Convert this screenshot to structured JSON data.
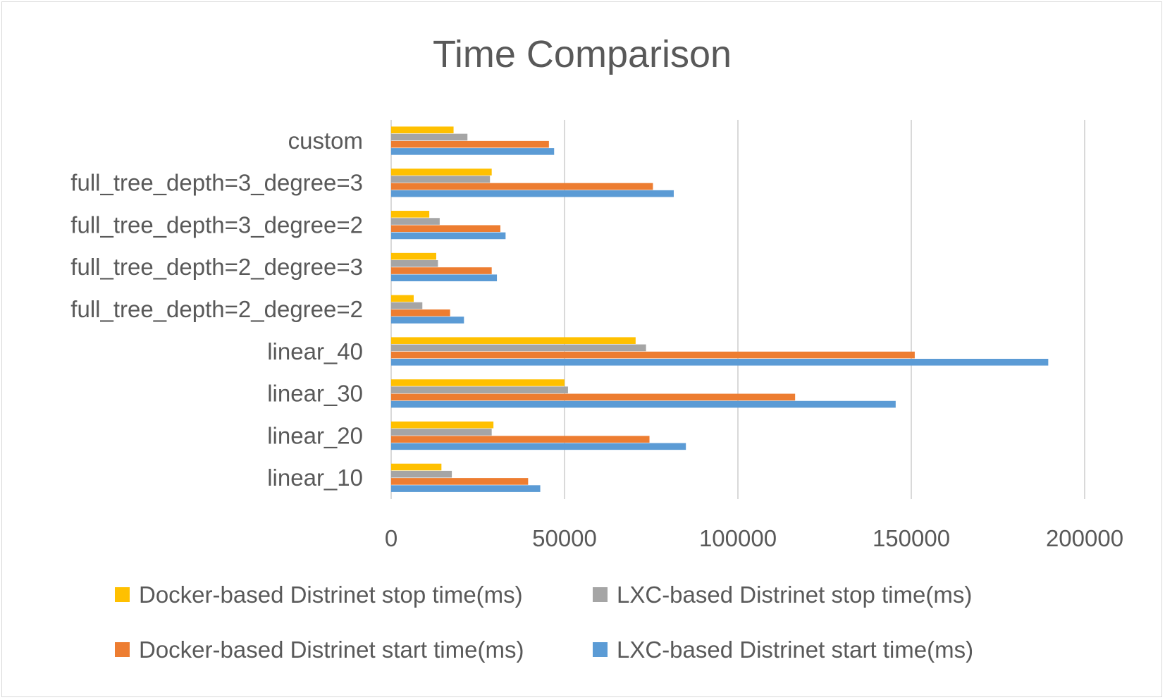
{
  "chart_data": {
    "type": "bar",
    "orientation": "horizontal",
    "title": "Time Comparison",
    "categories": [
      "custom",
      "full_tree_depth=3_degree=3",
      "full_tree_depth=3_degree=2",
      "full_tree_depth=2_degree=3",
      "full_tree_depth=2_degree=2",
      "linear_40",
      "linear_30",
      "linear_20",
      "linear_10"
    ],
    "series": [
      {
        "name": "Docker-based Distrinet stop time(ms)",
        "color": "#ffc000",
        "values": [
          18000,
          29000,
          11000,
          13000,
          6500,
          70500,
          50000,
          29500,
          14500
        ]
      },
      {
        "name": "LXC-based Distrinet stop time(ms)",
        "color": "#a5a5a5",
        "values": [
          22000,
          28500,
          14000,
          13500,
          9000,
          73500,
          51000,
          29000,
          17500
        ]
      },
      {
        "name": "Docker-based Distrinet start time(ms)",
        "color": "#ed7d31",
        "values": [
          45500,
          75500,
          31500,
          29000,
          17000,
          151000,
          116500,
          74500,
          39500
        ]
      },
      {
        "name": "LXC-based Distrinet start time(ms)",
        "color": "#5b9bd5",
        "values": [
          47000,
          81500,
          33000,
          30500,
          21000,
          189500,
          145500,
          85000,
          43000
        ]
      }
    ],
    "xlim": [
      0,
      200000
    ],
    "xticks": [
      "0",
      "50000",
      "100000",
      "150000",
      "200000"
    ],
    "grid": true,
    "legend_position": "bottom"
  }
}
